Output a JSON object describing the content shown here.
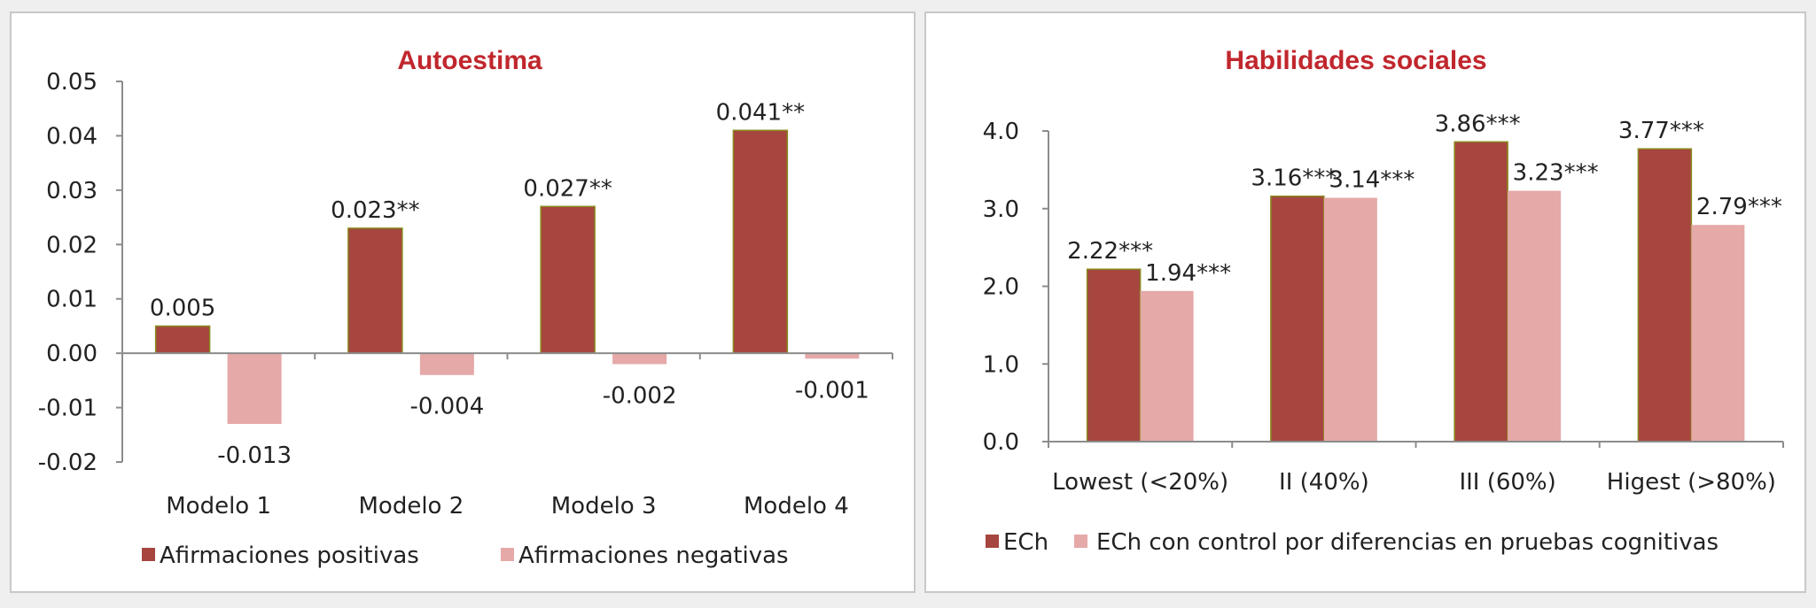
{
  "chart_data": [
    {
      "type": "bar",
      "title": "Autoestima",
      "categories": [
        "Modelo 1",
        "Modelo 2",
        "Modelo 3",
        "Modelo 4"
      ],
      "series": [
        {
          "name": "Afirmaciones positivas",
          "color": "#a6463f",
          "values": [
            0.005,
            0.023,
            0.027,
            0.041
          ],
          "labels": [
            "0.005",
            "0.023**",
            "0.027**",
            "0.041**"
          ]
        },
        {
          "name": "Afirmaciones negativas",
          "color": "#e5a9a8",
          "values": [
            -0.013,
            -0.004,
            -0.002,
            -0.001
          ],
          "labels": [
            "-0.013",
            "-0.004",
            "-0.002",
            "-0.001"
          ]
        }
      ],
      "ylim": [
        -0.02,
        0.05
      ],
      "yticks": [
        "0.05",
        "0.04",
        "0.03",
        "0.02",
        "0.01",
        "0.00",
        "-0.01",
        "-0.02"
      ],
      "xlabel": "",
      "ylabel": "",
      "legend": "bottom",
      "grid": false
    },
    {
      "type": "bar",
      "title": "Habilidades sociales",
      "categories": [
        "Lowest (<20%)",
        "II (40%)",
        "III (60%)",
        "Higest (>80%)"
      ],
      "series": [
        {
          "name": "ECh",
          "color": "#a6463f",
          "values": [
            2.22,
            3.16,
            3.86,
            3.77
          ],
          "labels": [
            "2.22***",
            "3.16***",
            "3.86***",
            "3.77***"
          ]
        },
        {
          "name": "ECh con control por diferencias en pruebas cognitivas",
          "color": "#e5a9a8",
          "values": [
            1.94,
            3.14,
            3.23,
            2.79
          ],
          "labels": [
            "1.94***",
            "3.14***",
            "3.23***",
            "2.79***"
          ]
        }
      ],
      "ylim": [
        0.0,
        4.0
      ],
      "yticks": [
        "4.0",
        "3.0",
        "2.0",
        "1.0",
        "0.0"
      ],
      "xlabel": "",
      "ylabel": "",
      "legend": "bottom",
      "grid": false
    }
  ]
}
